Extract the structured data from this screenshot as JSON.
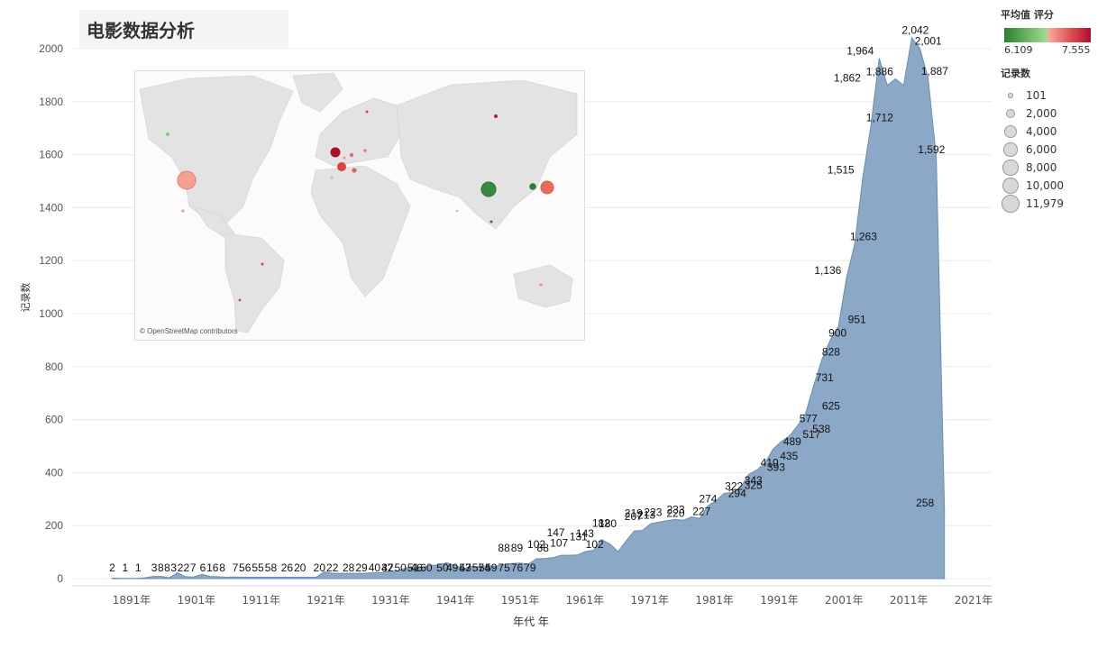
{
  "page": {
    "title": "电影数据分析"
  },
  "map": {
    "credit": "© OpenStreetMap contributors"
  },
  "legend": {
    "color_title": "平均值 评分",
    "color_min": "6.109",
    "color_max": "7.555",
    "colors": {
      "low": "#2e7d32",
      "mid_low": "#9ddc8e",
      "mid_high": "#f7a89a",
      "high": "#b00d2c"
    },
    "size_title": "记录数",
    "size_items": [
      {
        "label": "101",
        "value": 101
      },
      {
        "label": "2,000",
        "value": 2000
      },
      {
        "label": "4,000",
        "value": 4000
      },
      {
        "label": "6,000",
        "value": 6000
      },
      {
        "label": "8,000",
        "value": 8000
      },
      {
        "label": "10,000",
        "value": 10000
      },
      {
        "label": "11,979",
        "value": 11979
      }
    ]
  },
  "chart_data": {
    "type": "area",
    "xlabel": "年代 年",
    "ylabel": "记录数",
    "xlim": [
      1881,
      2021
    ],
    "ylim": [
      0,
      2000
    ],
    "grid": true,
    "color": "#7f9ec1",
    "x_ticks": [
      {
        "year": 1891,
        "label": "1891年"
      },
      {
        "year": 1901,
        "label": "1901年"
      },
      {
        "year": 1911,
        "label": "1911年"
      },
      {
        "year": 1921,
        "label": "1921年"
      },
      {
        "year": 1931,
        "label": "1931年"
      },
      {
        "year": 1941,
        "label": "1941年"
      },
      {
        "year": 1951,
        "label": "1951年"
      },
      {
        "year": 1961,
        "label": "1961年"
      },
      {
        "year": 1971,
        "label": "1971年"
      },
      {
        "year": 1981,
        "label": "1981年"
      },
      {
        "year": 1991,
        "label": "1991年"
      },
      {
        "year": 2001,
        "label": "2001年"
      },
      {
        "year": 2011,
        "label": "2011年"
      },
      {
        "year": 2021,
        "label": "2021年"
      }
    ],
    "y_ticks": [
      {
        "value": 0,
        "label": "0"
      },
      {
        "value": 200,
        "label": "200"
      },
      {
        "value": 400,
        "label": "400"
      },
      {
        "value": 600,
        "label": "600"
      },
      {
        "value": 800,
        "label": "800"
      },
      {
        "value": 1000,
        "label": "1000"
      },
      {
        "value": 1200,
        "label": "1200"
      },
      {
        "value": 1400,
        "label": "1400"
      },
      {
        "value": 1600,
        "label": "1600"
      },
      {
        "value": 1800,
        "label": "1800"
      },
      {
        "value": 2000,
        "label": "2000"
      }
    ],
    "points": [
      {
        "x": 1888,
        "y": 2
      },
      {
        "x": 1889,
        "y": 1
      },
      {
        "x": 1890,
        "y": 1
      },
      {
        "x": 1891,
        "y": 1
      },
      {
        "x": 1892,
        "y": 3
      },
      {
        "x": 1893,
        "y": 8
      },
      {
        "x": 1894,
        "y": 8
      },
      {
        "x": 1895,
        "y": 3
      },
      {
        "x": 1896,
        "y": 22
      },
      {
        "x": 1897,
        "y": 7
      },
      {
        "x": 1898,
        "y": 6
      },
      {
        "x": 1899,
        "y": 16
      },
      {
        "x": 1900,
        "y": 8
      },
      {
        "x": 1901,
        "y": 7
      },
      {
        "x": 1902,
        "y": 5
      },
      {
        "x": 1903,
        "y": 6
      },
      {
        "x": 1904,
        "y": 5
      },
      {
        "x": 1905,
        "y": 5
      },
      {
        "x": 1906,
        "y": 5
      },
      {
        "x": 1907,
        "y": 5
      },
      {
        "x": 1908,
        "y": 5
      },
      {
        "x": 1909,
        "y": 5
      },
      {
        "x": 1910,
        "y": 5
      },
      {
        "x": 1911,
        "y": 5
      },
      {
        "x": 1912,
        "y": 5
      },
      {
        "x": 1913,
        "y": 5
      },
      {
        "x": 1914,
        "y": 26
      },
      {
        "x": 1915,
        "y": 20
      },
      {
        "x": 1916,
        "y": 20
      },
      {
        "x": 1917,
        "y": 20
      },
      {
        "x": 1918,
        "y": 20
      },
      {
        "x": 1919,
        "y": 20
      },
      {
        "x": 1920,
        "y": 22
      },
      {
        "x": 1921,
        "y": 22
      },
      {
        "x": 1922,
        "y": 28
      },
      {
        "x": 1923,
        "y": 29
      },
      {
        "x": 1924,
        "y": 40
      },
      {
        "x": 1925,
        "y": 42
      },
      {
        "x": 1926,
        "y": 42
      },
      {
        "x": 1927,
        "y": 50
      },
      {
        "x": 1928,
        "y": 51
      },
      {
        "x": 1929,
        "y": 60
      },
      {
        "x": 1930,
        "y": 50
      },
      {
        "x": 1931,
        "y": 37
      },
      {
        "x": 1932,
        "y": 46
      },
      {
        "x": 1933,
        "y": 46
      },
      {
        "x": 1934,
        "y": 49
      },
      {
        "x": 1935,
        "y": 47
      },
      {
        "x": 1936,
        "y": 53
      },
      {
        "x": 1937,
        "y": 57
      },
      {
        "x": 1938,
        "y": 59
      },
      {
        "x": 1939,
        "y": 54
      },
      {
        "x": 1940,
        "y": 75
      },
      {
        "x": 1941,
        "y": 76
      },
      {
        "x": 1942,
        "y": 79
      },
      {
        "x": 1943,
        "y": 88
      },
      {
        "x": 1944,
        "y": 88
      },
      {
        "x": 1945,
        "y": 89
      },
      {
        "x": 1946,
        "y": 102
      },
      {
        "x": 1947,
        "y": 107
      },
      {
        "x": 1948,
        "y": 147
      },
      {
        "x": 1949,
        "y": 131
      },
      {
        "x": 1950,
        "y": 102
      },
      {
        "x": 1951,
        "y": 143
      },
      {
        "x": 1952,
        "y": 180
      },
      {
        "x": 1953,
        "y": 182
      },
      {
        "x": 1954,
        "y": 207
      },
      {
        "x": 1955,
        "y": 213
      },
      {
        "x": 1956,
        "y": 219
      },
      {
        "x": 1957,
        "y": 223
      },
      {
        "x": 1958,
        "y": 220
      },
      {
        "x": 1959,
        "y": 233
      },
      {
        "x": 1960,
        "y": 227
      },
      {
        "x": 1961,
        "y": 274
      },
      {
        "x": 1962,
        "y": 294
      },
      {
        "x": 1963,
        "y": 322
      },
      {
        "x": 1964,
        "y": 325
      },
      {
        "x": 1965,
        "y": 343
      },
      {
        "x": 1966,
        "y": 393
      },
      {
        "x": 1967,
        "y": 410
      },
      {
        "x": 1968,
        "y": 435
      },
      {
        "x": 1969,
        "y": 489
      },
      {
        "x": 1970,
        "y": 517
      },
      {
        "x": 1971,
        "y": 538
      },
      {
        "x": 1972,
        "y": 577
      },
      {
        "x": 1973,
        "y": 625
      },
      {
        "x": 1974,
        "y": 731
      },
      {
        "x": 1975,
        "y": 828
      },
      {
        "x": 1976,
        "y": 900
      },
      {
        "x": 1977,
        "y": 951
      },
      {
        "x": 1978,
        "y": 1136
      },
      {
        "x": 1979,
        "y": 1263
      },
      {
        "x": 1980,
        "y": 1515
      },
      {
        "x": 1981,
        "y": 1712
      },
      {
        "x": 1982,
        "y": 1964
      },
      {
        "x": 1983,
        "y": 1862
      },
      {
        "x": 1984,
        "y": 1886
      },
      {
        "x": 1985,
        "y": 1862
      },
      {
        "x": 1986,
        "y": 2042
      },
      {
        "x": 1987,
        "y": 2001
      },
      {
        "x": 1988,
        "y": 1887
      },
      {
        "x": 1989,
        "y": 1592
      },
      {
        "x": 1990,
        "y": 258
      }
    ],
    "labels": [
      {
        "x": 1888,
        "y": 2,
        "text": "2"
      },
      {
        "x": 1890,
        "y": 1,
        "text": "1"
      },
      {
        "x": 1892,
        "y": 1,
        "text": "1"
      },
      {
        "x": 1894.5,
        "y": 3,
        "text": "3"
      },
      {
        "x": 1895.5,
        "y": 8,
        "text": "8"
      },
      {
        "x": 1896.5,
        "y": 8,
        "text": "8"
      },
      {
        "x": 1897.5,
        "y": 3,
        "text": "3"
      },
      {
        "x": 1899,
        "y": 22,
        "text": "22"
      },
      {
        "x": 1900.5,
        "y": 7,
        "text": "7"
      },
      {
        "x": 1902,
        "y": 6,
        "text": "6"
      },
      {
        "x": 1903.5,
        "y": 16,
        "text": "16"
      },
      {
        "x": 1905,
        "y": 8,
        "text": "8"
      },
      {
        "x": 1907,
        "y": 7,
        "text": "7"
      },
      {
        "x": 1908.5,
        "y": 56,
        "text": "56"
      },
      {
        "x": 1910.5,
        "y": 55,
        "text": "55"
      },
      {
        "x": 1912.5,
        "y": 58,
        "text": "58"
      },
      {
        "x": 1915,
        "y": 26,
        "text": "26"
      },
      {
        "x": 1917,
        "y": 20,
        "text": "20"
      },
      {
        "x": 1920,
        "y": 20,
        "text": "20"
      },
      {
        "x": 1922,
        "y": 22,
        "text": "22"
      },
      {
        "x": 1924.5,
        "y": 28,
        "text": "28"
      },
      {
        "x": 1926.5,
        "y": 29,
        "text": "29"
      },
      {
        "x": 1928.5,
        "y": 40,
        "text": "40"
      },
      {
        "x": 1930.5,
        "y": 42,
        "text": "42"
      },
      {
        "x": 1932.5,
        "y": 50,
        "text": "50"
      },
      {
        "x": 1934.5,
        "y": 51,
        "text": "51"
      },
      {
        "x": 1936.5,
        "y": 60,
        "text": "60"
      },
      {
        "x": 1939,
        "y": 50,
        "text": "50"
      },
      {
        "x": 1930.5,
        "y": 37,
        "text": "37"
      },
      {
        "x": 1935,
        "y": 46,
        "text": "46"
      },
      {
        "x": 1940.5,
        "y": 49,
        "text": "49"
      },
      {
        "x": 1942.5,
        "y": 47,
        "text": "47"
      },
      {
        "x": 1942.5,
        "y": 53,
        "text": "53"
      },
      {
        "x": 1944.5,
        "y": 57,
        "text": "57"
      },
      {
        "x": 1946.5,
        "y": 59,
        "text": "59"
      },
      {
        "x": 1945.5,
        "y": 54,
        "text": "54"
      },
      {
        "x": 1948.5,
        "y": 75,
        "text": "75"
      },
      {
        "x": 1950.5,
        "y": 76,
        "text": "76"
      },
      {
        "x": 1952.5,
        "y": 79,
        "text": "79"
      },
      {
        "x": 1954.5,
        "y": 88,
        "text": "88"
      },
      {
        "x": 1948.5,
        "y": 88,
        "text": "88"
      },
      {
        "x": 1950.5,
        "y": 89,
        "text": "89"
      },
      {
        "x": 1953.5,
        "y": 102,
        "text": "102"
      },
      {
        "x": 1957,
        "y": 107,
        "text": "107"
      },
      {
        "x": 1956.5,
        "y": 147,
        "text": "147"
      },
      {
        "x": 1960,
        "y": 131,
        "text": "131"
      },
      {
        "x": 1961,
        "y": 143,
        "text": "143"
      },
      {
        "x": 1962.5,
        "y": 102,
        "text": "102"
      },
      {
        "x": 1964.5,
        "y": 180,
        "text": "180"
      },
      {
        "x": 1963.5,
        "y": 182,
        "text": "182"
      },
      {
        "x": 1968.5,
        "y": 207,
        "text": "207"
      },
      {
        "x": 1970.5,
        "y": 213,
        "text": "213"
      },
      {
        "x": 1968.5,
        "y": 219,
        "text": "219"
      },
      {
        "x": 1971.5,
        "y": 223,
        "text": "223"
      },
      {
        "x": 1975,
        "y": 220,
        "text": "220"
      },
      {
        "x": 1975,
        "y": 233,
        "text": "233"
      },
      {
        "x": 1979,
        "y": 227,
        "text": "227"
      },
      {
        "x": 1980,
        "y": 274,
        "text": "274"
      },
      {
        "x": 1984.5,
        "y": 294,
        "text": "294"
      },
      {
        "x": 1984,
        "y": 322,
        "text": "322"
      },
      {
        "x": 1987,
        "y": 325,
        "text": "325"
      },
      {
        "x": 1987,
        "y": 343,
        "text": "343"
      },
      {
        "x": 1990.5,
        "y": 393,
        "text": "393"
      },
      {
        "x": 1989.5,
        "y": 410,
        "text": "410"
      },
      {
        "x": 1992.5,
        "y": 435,
        "text": "435"
      },
      {
        "x": 1993,
        "y": 489,
        "text": "489"
      },
      {
        "x": 1996,
        "y": 517,
        "text": "517"
      },
      {
        "x": 1997.5,
        "y": 538,
        "text": "538"
      },
      {
        "x": 1995.5,
        "y": 577,
        "text": "577"
      },
      {
        "x": 1999,
        "y": 625,
        "text": "625"
      },
      {
        "x": 1998,
        "y": 731,
        "text": "731"
      },
      {
        "x": 1999,
        "y": 828,
        "text": "828"
      },
      {
        "x": 2000,
        "y": 900,
        "text": "900"
      },
      {
        "x": 2003,
        "y": 951,
        "text": "951"
      },
      {
        "x": 1998.5,
        "y": 1136,
        "text": "1,136"
      },
      {
        "x": 2004,
        "y": 1263,
        "text": "1,263"
      },
      {
        "x": 2000.5,
        "y": 1515,
        "text": "1,515"
      },
      {
        "x": 2006.5,
        "y": 1712,
        "text": "1,712"
      },
      {
        "x": 2003.5,
        "y": 1964,
        "text": "1,964"
      },
      {
        "x": 2001.5,
        "y": 1862,
        "text": "1,862"
      },
      {
        "x": 2006.5,
        "y": 1886,
        "text": "1,886"
      },
      {
        "x": 2012,
        "y": 2042,
        "text": "2,042"
      },
      {
        "x": 2014,
        "y": 2001,
        "text": "2,001"
      },
      {
        "x": 2015,
        "y": 1887,
        "text": "1,887"
      },
      {
        "x": 2014.5,
        "y": 1592,
        "text": "1,592"
      },
      {
        "x": 2013.5,
        "y": 258,
        "text": "258"
      }
    ]
  }
}
